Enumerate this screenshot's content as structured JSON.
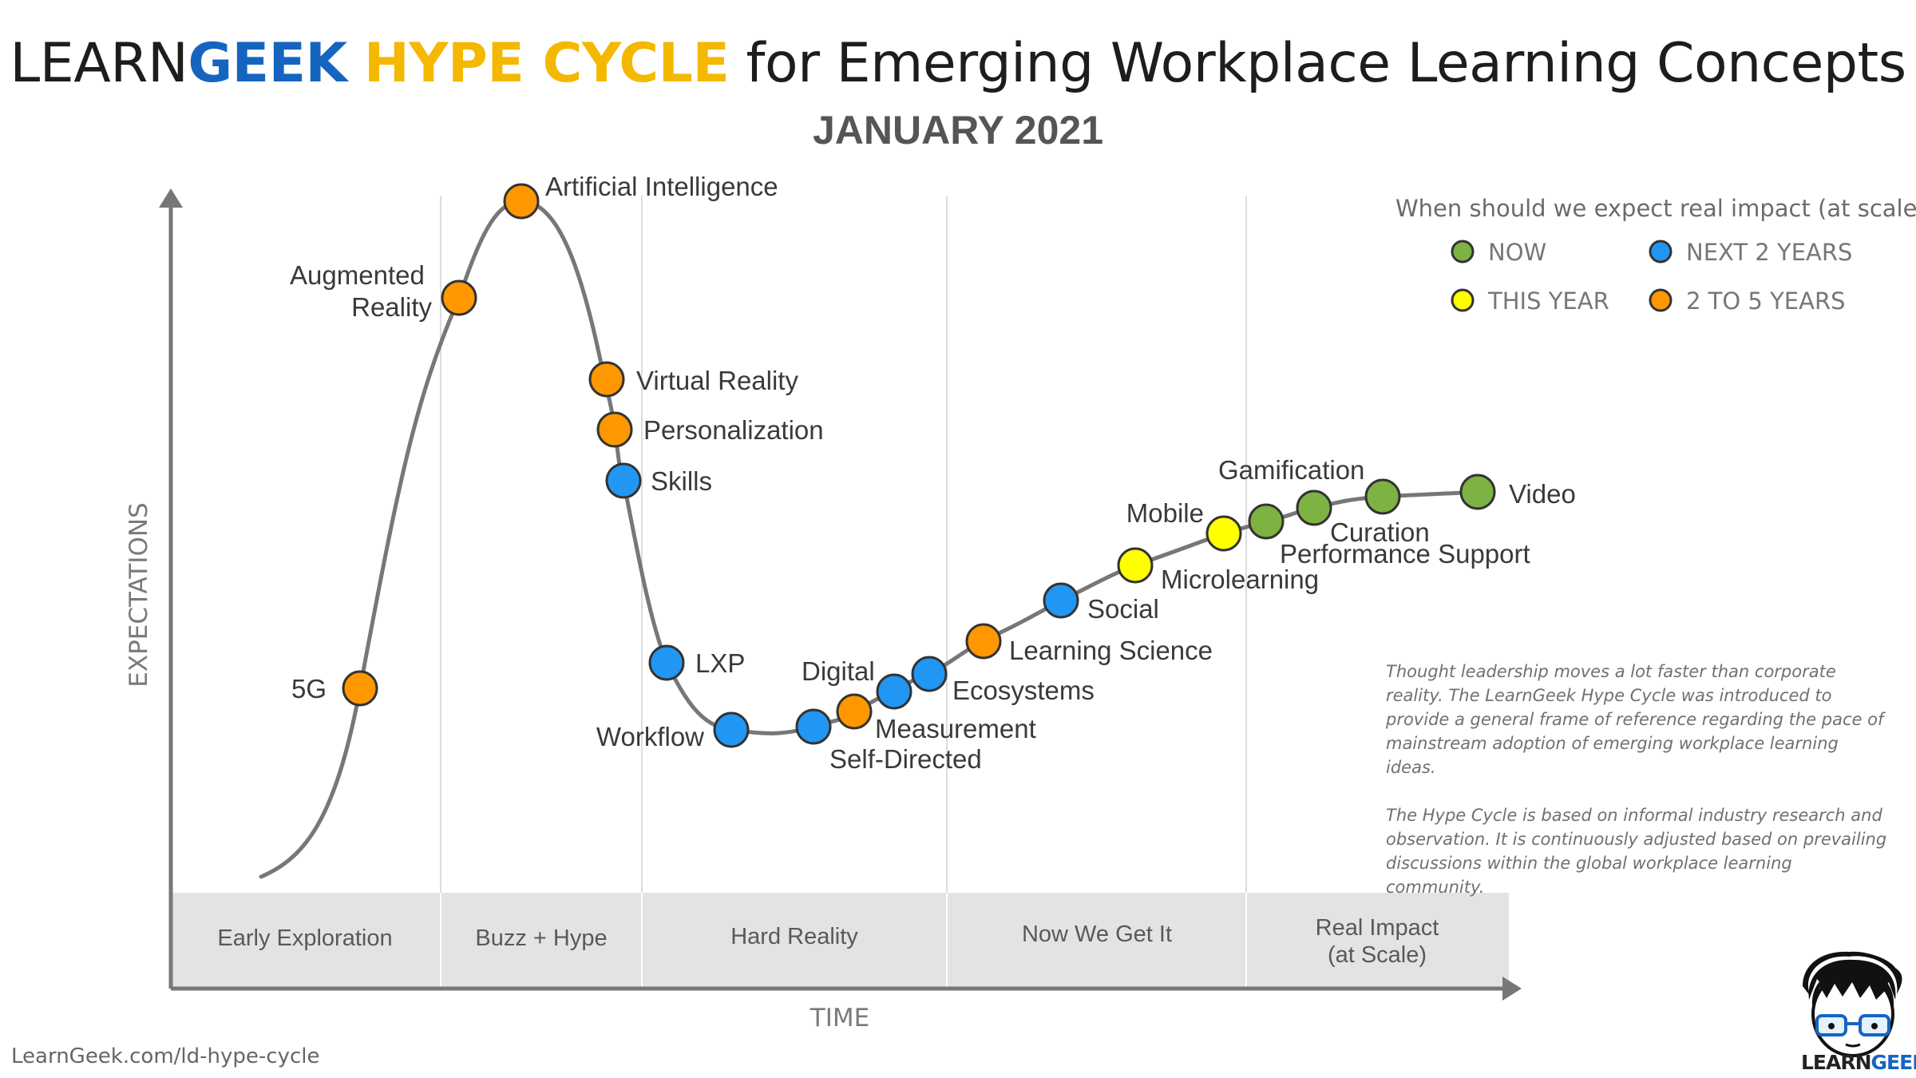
{
  "title": {
    "brand1": "LEARN",
    "brand2": "GEEK",
    "brand3": "HYPE CYCLE",
    "rest": "for Emerging Workplace Learning Concepts"
  },
  "subtitle": "JANUARY 2021",
  "axes": {
    "y_label": "EXPECTATIONS",
    "x_label": "TIME"
  },
  "legend": {
    "question": "When should we expect real impact (at scale)?",
    "items": [
      {
        "key": "now",
        "label": "NOW",
        "color": "#7cb342"
      },
      {
        "key": "next2",
        "label": "NEXT 2 YEARS",
        "color": "#2196f3"
      },
      {
        "key": "thisyear",
        "label": "THIS YEAR",
        "color": "#ffff00"
      },
      {
        "key": "2to5",
        "label": "2 TO 5 YEARS",
        "color": "#ff9800"
      }
    ]
  },
  "phases": [
    {
      "lines": [
        "Early Exploration"
      ]
    },
    {
      "lines": [
        "Buzz + Hype"
      ]
    },
    {
      "lines": [
        "Hard Reality"
      ]
    },
    {
      "lines": [
        "Now We Get It"
      ]
    },
    {
      "lines": [
        "Real Impact",
        "(at Scale)"
      ]
    }
  ],
  "concepts": [
    {
      "name": "5G",
      "impact": "2to5"
    },
    {
      "name": "Augmented Reality",
      "impact": "2to5"
    },
    {
      "name": "Artificial Intelligence",
      "impact": "2to5"
    },
    {
      "name": "Virtual Reality",
      "impact": "2to5"
    },
    {
      "name": "Personalization",
      "impact": "2to5"
    },
    {
      "name": "Skills",
      "impact": "next2"
    },
    {
      "name": "LXP",
      "impact": "next2"
    },
    {
      "name": "Workflow",
      "impact": "next2"
    },
    {
      "name": "Self-Directed",
      "impact": "next2"
    },
    {
      "name": "Digital",
      "impact": "2to5"
    },
    {
      "name": "Measurement",
      "impact": "next2"
    },
    {
      "name": "Ecosystems",
      "impact": "next2"
    },
    {
      "name": "Learning Science",
      "impact": "2to5"
    },
    {
      "name": "Social",
      "impact": "next2"
    },
    {
      "name": "Microlearning",
      "impact": "thisyear"
    },
    {
      "name": "Mobile",
      "impact": "thisyear"
    },
    {
      "name": "Performance Support",
      "impact": "now"
    },
    {
      "name": "Gamification",
      "impact": "now"
    },
    {
      "name": "Curation",
      "impact": "now"
    },
    {
      "name": "Video",
      "impact": "now"
    }
  ],
  "note": {
    "p1": "Thought leadership moves a lot faster than corporate reality. The LearnGeek Hype Cycle was introduced to provide a general frame of reference regarding the pace of mainstream adoption of emerging workplace learning ideas.",
    "p2": "The Hype Cycle is based on informal industry research and observation. It is continuously adjusted based on prevailing discussions within the global workplace learning community."
  },
  "footer": {
    "url": "LearnGeek.com/ld-hype-cycle"
  },
  "brand": {
    "learn": "LEARN",
    "geek": "GEEK"
  },
  "colors": {
    "curve": "#777777",
    "band": "#e3e3e3",
    "axis": "#777777",
    "divider": "#dddddd"
  }
}
